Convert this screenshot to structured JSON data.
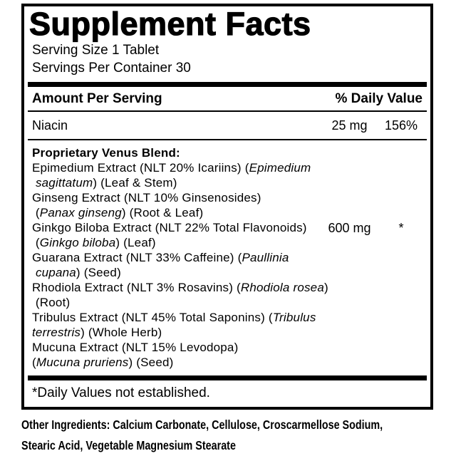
{
  "panel": {
    "title": "Supplement Facts",
    "serving_size": "Serving Size 1 Tablet",
    "servings_per_container": "Servings Per Container 30",
    "header": {
      "amount_label": "Amount Per Serving",
      "dv_label": "% Daily Value"
    },
    "nutrients": [
      {
        "name": "Niacin",
        "amount": "25 mg",
        "dv": "156%"
      }
    ],
    "blend": {
      "amount": "600 mg",
      "dv": "*",
      "lines": [
        {
          "segments": [
            {
              "text": "Proprietary Venus Blend:",
              "bold": true
            }
          ]
        },
        {
          "segments": [
            {
              "text": "Epimedium Extract (NLT 20% Icariins) ("
            },
            {
              "text": "Epimedium",
              "italic": true
            }
          ]
        },
        {
          "segments": [
            {
              "text": " "
            },
            {
              "text": "sagittatum",
              "italic": true
            },
            {
              "text": ") (Leaf & Stem)"
            }
          ]
        },
        {
          "segments": [
            {
              "text": "Ginseng Extract (NLT 10% Ginsenosides)"
            }
          ]
        },
        {
          "segments": [
            {
              "text": " ("
            },
            {
              "text": "Panax ginseng",
              "italic": true
            },
            {
              "text": ") (Root & Leaf)"
            }
          ]
        },
        {
          "segments": [
            {
              "text": "Ginkgo Biloba Extract (NLT 22% Total Flavonoids)"
            }
          ]
        },
        {
          "segments": [
            {
              "text": " ("
            },
            {
              "text": "Ginkgo biloba",
              "italic": true
            },
            {
              "text": ") (Leaf)"
            }
          ]
        },
        {
          "segments": [
            {
              "text": "Guarana Extract (NLT 33% Caffeine) ("
            },
            {
              "text": "Paullinia",
              "italic": true
            }
          ]
        },
        {
          "segments": [
            {
              "text": " "
            },
            {
              "text": "cupana",
              "italic": true
            },
            {
              "text": ") (Seed)"
            }
          ]
        },
        {
          "segments": [
            {
              "text": "Rhodiola Extract (NLT 3% Rosavins) ("
            },
            {
              "text": "Rhodiola rosea",
              "italic": true
            },
            {
              "text": ")"
            }
          ]
        },
        {
          "segments": [
            {
              "text": " (Root)"
            }
          ]
        },
        {
          "segments": [
            {
              "text": "Tribulus Extract (NLT 45% Total Saponins) ("
            },
            {
              "text": "Tribulus",
              "italic": true
            }
          ]
        },
        {
          "segments": [
            {
              "text": "terrestris",
              "italic": true
            },
            {
              "text": ") (Whole Herb)"
            }
          ]
        },
        {
          "segments": [
            {
              "text": "Mucuna Extract (NLT 15% Levodopa)"
            }
          ]
        },
        {
          "segments": [
            {
              "text": "("
            },
            {
              "text": "Mucuna pruriens",
              "italic": true
            },
            {
              "text": ") (Seed)"
            }
          ]
        }
      ]
    },
    "footnote": "*Daily Values not established.",
    "other_ingredients": {
      "line1": "Other Ingredients: Calcium Carbonate, Cellulose, Croscarmellose Sodium,",
      "line2": "Stearic Acid, Vegetable Magnesium Stearate"
    },
    "colors": {
      "ink": "#000000",
      "background": "#ffffff"
    }
  }
}
